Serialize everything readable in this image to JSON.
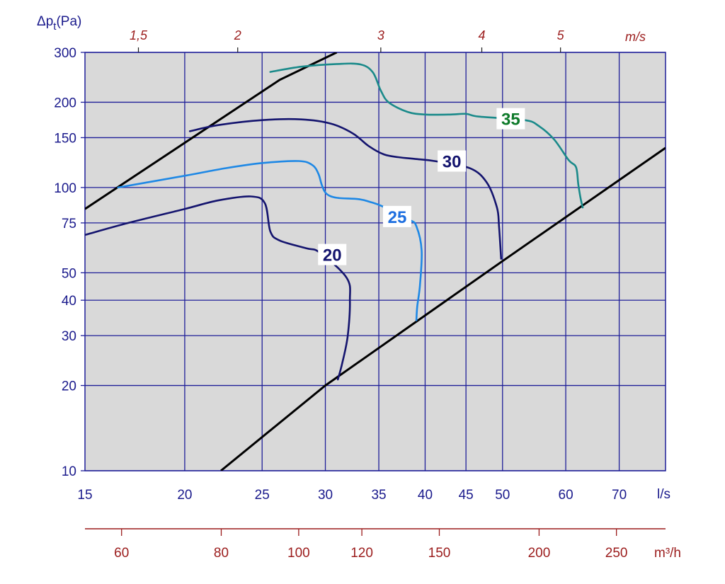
{
  "chart_data": {
    "type": "line",
    "title": "",
    "ylabel_prefix": "Δp",
    "ylabel_sub": "t",
    "ylabel_suffix": "(Pa)",
    "x_unit_label": "l/s",
    "top_unit_label": "m/s",
    "bottom_unit_label": "m³/h",
    "x_scale": "log",
    "y_scale": "log",
    "xlim": [
      15,
      80
    ],
    "ylim": [
      10,
      300
    ],
    "grid": true,
    "x_ticks": [
      15,
      20,
      25,
      30,
      35,
      40,
      45,
      50,
      60,
      70
    ],
    "y_ticks": [
      10,
      20,
      30,
      40,
      50,
      75,
      100,
      150,
      200,
      300
    ],
    "top_ticks": [
      {
        "label": "1,5",
        "x": 17.5
      },
      {
        "label": "2",
        "x": 23.3
      },
      {
        "label": "3",
        "x": 35.2
      },
      {
        "label": "4",
        "x": 47.1
      },
      {
        "label": "5",
        "x": 59.1
      }
    ],
    "bottom_ticks": [
      {
        "label": "60",
        "x": 16.67
      },
      {
        "label": "80",
        "x": 22.22
      },
      {
        "label": "100",
        "x": 27.78
      },
      {
        "label": "120",
        "x": 33.33
      },
      {
        "label": "150",
        "x": 41.67
      },
      {
        "label": "200",
        "x": 55.56
      },
      {
        "label": "250",
        "x": 69.44
      }
    ],
    "colors": {
      "plot_bg": "#d9d9d9",
      "grid": "#1f1f99",
      "axis_text": "#1a1a8c",
      "secondary_text": "#9b1c1c",
      "boundary": "#000000"
    },
    "boundary_lines": [
      {
        "points": [
          [
            15,
            84
          ],
          [
            26.3,
            240
          ],
          [
            31.0,
            300
          ]
        ]
      },
      {
        "points": [
          [
            22.2,
            10
          ],
          [
            30.0,
            20
          ],
          [
            50.0,
            55
          ],
          [
            80.0,
            138
          ]
        ]
      }
    ],
    "series": [
      {
        "name": "20",
        "color": "#14146e",
        "label_at": [
          30.6,
          58
        ],
        "label_color": "#14146e",
        "points": [
          [
            15,
            68
          ],
          [
            17,
            75
          ],
          [
            20,
            84
          ],
          [
            22,
            90
          ],
          [
            24.2,
            93
          ],
          [
            25.2,
            88
          ],
          [
            25.6,
            70
          ],
          [
            26.3,
            65
          ],
          [
            28.4,
            61
          ],
          [
            29.5,
            59
          ],
          [
            31.9,
            48
          ],
          [
            32.2,
            40
          ],
          [
            32.0,
            30
          ],
          [
            31.5,
            24
          ],
          [
            31.1,
            21
          ]
        ]
      },
      {
        "name": "25",
        "color": "#1e88e5",
        "label_at": [
          36.9,
          79
        ],
        "label_color": "#1e6fe0",
        "points": [
          [
            16.5,
            100
          ],
          [
            20,
            110
          ],
          [
            22.5,
            117
          ],
          [
            25,
            122
          ],
          [
            27.8,
            124
          ],
          [
            28.9,
            120
          ],
          [
            29.4,
            112
          ],
          [
            29.7,
            102
          ],
          [
            30.1,
            95
          ],
          [
            31,
            92
          ],
          [
            33,
            91
          ],
          [
            34.1,
            89
          ],
          [
            35.3,
            86
          ],
          [
            38.2,
            77
          ],
          [
            39.0,
            73
          ],
          [
            39.6,
            60
          ],
          [
            39.4,
            45
          ],
          [
            39.1,
            38
          ],
          [
            39.0,
            34
          ]
        ]
      },
      {
        "name": "30",
        "color": "#14146e",
        "label_at": [
          43.2,
          124
        ],
        "label_color": "#14146e",
        "points": [
          [
            20.3,
            158
          ],
          [
            22,
            166
          ],
          [
            25,
            173
          ],
          [
            28,
            174
          ],
          [
            30.5,
            168
          ],
          [
            32.5,
            155
          ],
          [
            34,
            140
          ],
          [
            35.5,
            131
          ],
          [
            37,
            128
          ],
          [
            39,
            126
          ],
          [
            41.1,
            124
          ],
          [
            45.5,
            117
          ],
          [
            47.8,
            104
          ],
          [
            49.2,
            85
          ],
          [
            49.5,
            73
          ],
          [
            49.8,
            56
          ]
        ]
      },
      {
        "name": "35",
        "color": "#1a8a8a",
        "label_at": [
          51.2,
          175
        ],
        "label_color": "#0e7a2a",
        "points": [
          [
            25.6,
            256
          ],
          [
            28,
            267
          ],
          [
            31,
            273
          ],
          [
            33.2,
            272
          ],
          [
            34.4,
            255
          ],
          [
            35.2,
            220
          ],
          [
            36.0,
            200
          ],
          [
            38,
            185
          ],
          [
            40,
            181
          ],
          [
            43,
            181
          ],
          [
            45,
            182
          ],
          [
            46.7,
            178
          ],
          [
            53.3,
            173
          ],
          [
            55.5,
            165
          ],
          [
            58,
            148
          ],
          [
            60.5,
            125
          ],
          [
            61.8,
            118
          ],
          [
            62.2,
            103
          ],
          [
            62.6,
            92
          ],
          [
            63.0,
            85
          ]
        ]
      }
    ]
  }
}
